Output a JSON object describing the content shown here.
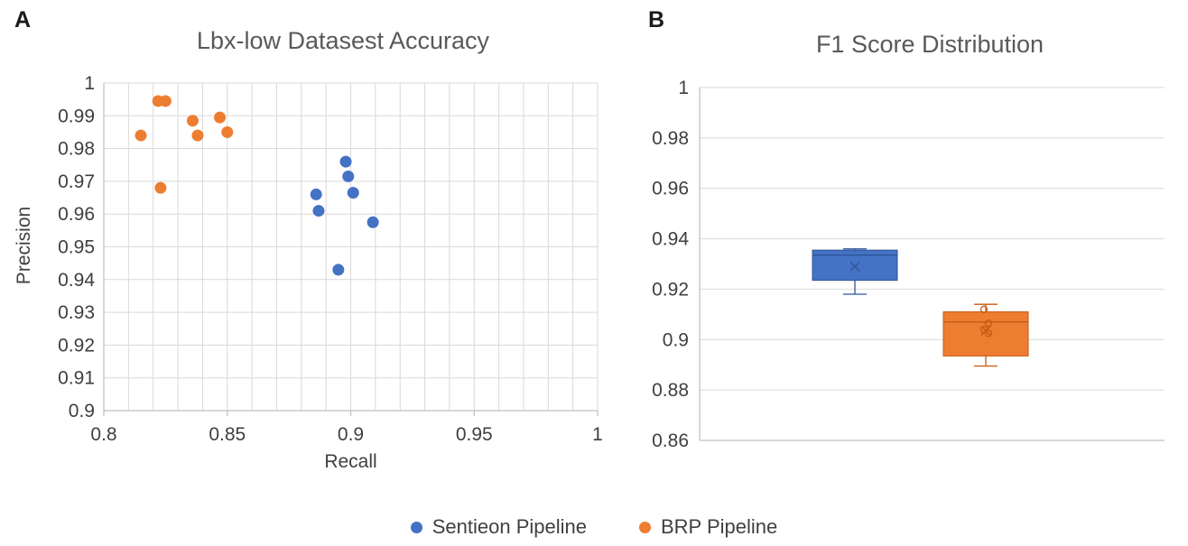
{
  "panel_labels": {
    "a": "A",
    "b": "B"
  },
  "colors": {
    "grid": "#D9D9D9",
    "axis": "#BFBFBF",
    "text": "#3F3F3F",
    "title": "#595959",
    "blue": "#4472C4",
    "orange": "#ED7D31"
  },
  "legend": {
    "items": [
      {
        "label": "Sentieon Pipeline",
        "color": "#4472C4"
      },
      {
        "label": "BRP Pipeline",
        "color": "#ED7D31"
      }
    ]
  },
  "chart_data": [
    {
      "type": "scatter",
      "panel": "A",
      "title": "Lbx-low Datasest Accuracy",
      "xlabel": "Recall",
      "ylabel": "Precision",
      "xlim": [
        0.8,
        1.0
      ],
      "ylim": [
        0.9,
        1.0
      ],
      "x_grid_step": 0.01,
      "y_grid_step": 0.01,
      "grid": true,
      "legend_position": "bottom",
      "x_ticks": [
        {
          "v": 0.8,
          "label": "0.8"
        },
        {
          "v": 0.85,
          "label": "0.85"
        },
        {
          "v": 0.9,
          "label": "0.9"
        },
        {
          "v": 0.95,
          "label": "0.95"
        },
        {
          "v": 1,
          "label": "1"
        }
      ],
      "y_ticks": [
        {
          "v": 1,
          "label": "1"
        },
        {
          "v": 0.99,
          "label": "0.99"
        },
        {
          "v": 0.98,
          "label": "0.98"
        },
        {
          "v": 0.97,
          "label": "0.97"
        },
        {
          "v": 0.96,
          "label": "0.96"
        },
        {
          "v": 0.95,
          "label": "0.95"
        },
        {
          "v": 0.94,
          "label": "0.94"
        },
        {
          "v": 0.93,
          "label": "0.93"
        },
        {
          "v": 0.92,
          "label": "0.92"
        },
        {
          "v": 0.91,
          "label": "0.91"
        },
        {
          "v": 0.9,
          "label": "0.9"
        }
      ],
      "series": [
        {
          "name": "Sentieon Pipeline",
          "color": "#4472C4",
          "points": [
            [
              0.886,
              0.966
            ],
            [
              0.887,
              0.961
            ],
            [
              0.898,
              0.976
            ],
            [
              0.899,
              0.9715
            ],
            [
              0.901,
              0.9665
            ],
            [
              0.895,
              0.943
            ],
            [
              0.909,
              0.9575
            ]
          ]
        },
        {
          "name": "BRP Pipeline",
          "color": "#ED7D31",
          "points": [
            [
              0.815,
              0.984
            ],
            [
              0.822,
              0.9945
            ],
            [
              0.825,
              0.9945
            ],
            [
              0.823,
              0.968
            ],
            [
              0.836,
              0.9885
            ],
            [
              0.838,
              0.984
            ],
            [
              0.847,
              0.9895
            ],
            [
              0.85,
              0.985
            ]
          ]
        }
      ]
    },
    {
      "type": "box",
      "panel": "B",
      "title": "F1 Score Distribution",
      "ylim": [
        0.86,
        1.0
      ],
      "grid": true,
      "y_ticks": [
        {
          "v": 1,
          "label": "1"
        },
        {
          "v": 0.98,
          "label": "0.98"
        },
        {
          "v": 0.96,
          "label": "0.96"
        },
        {
          "v": 0.94,
          "label": "0.94"
        },
        {
          "v": 0.92,
          "label": "0.92"
        },
        {
          "v": 0.9,
          "label": "0.9"
        },
        {
          "v": 0.88,
          "label": "0.88"
        },
        {
          "v": 0.86,
          "label": "0.86"
        }
      ],
      "boxes": [
        {
          "name": "Sentieon Pipeline",
          "color": "#4472C4",
          "border": "#2F5597",
          "whisker_low": 0.918,
          "q1": 0.9235,
          "median": 0.9335,
          "q3": 0.9355,
          "whisker_high": 0.936,
          "mean": 0.929,
          "points": []
        },
        {
          "name": "BRP Pipeline",
          "color": "#ED7D31",
          "border": "#C55A11",
          "whisker_low": 0.8895,
          "q1": 0.8935,
          "median": 0.907,
          "q3": 0.911,
          "whisker_high": 0.914,
          "mean": 0.9035,
          "points": [
            0.912,
            0.9065,
            0.904,
            0.9025
          ]
        }
      ]
    }
  ]
}
